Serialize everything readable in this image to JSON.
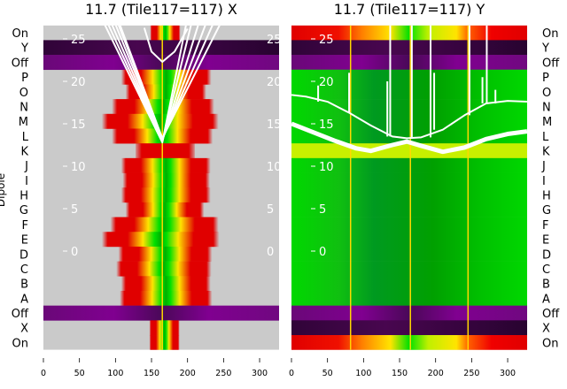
{
  "chart_data": {
    "type": "heatmap",
    "ylabel": "Dipole",
    "row_labels": [
      "On",
      "Y",
      "Off",
      "P",
      "O",
      "N",
      "M",
      "L",
      "K",
      "J",
      "I",
      "H",
      "G",
      "F",
      "E",
      "D",
      "C",
      "B",
      "A",
      "Off",
      "X",
      "On"
    ],
    "inner_yticks": [
      "0",
      "5",
      "10",
      "15",
      "20",
      "25"
    ],
    "inner_ytick_values": [
      0,
      5,
      10,
      15,
      20,
      25
    ],
    "xticks": [
      "0",
      "50",
      "100",
      "150",
      "200",
      "250",
      "300"
    ],
    "xtick_values": [
      0,
      50,
      100,
      150,
      200,
      250,
      300
    ],
    "xlim": [
      0,
      327
    ],
    "ylim_inner": [
      -11.5,
      26.7
    ],
    "colors": {
      "gray": "#cacaca",
      "purple": "#7e0a8a",
      "dark": "#2a0433",
      "green": "#00b800",
      "lime": "#c8f000",
      "red": "#e00000",
      "yellow": "#ffe400",
      "green_bright": "#00e000",
      "line": "#ffffff",
      "marker": "#ffd800"
    },
    "panels": [
      {
        "title": "11.7 (Tile117=117) X",
        "rows": [
          {
            "kind": "band",
            "range": [
              148,
              190
            ]
          },
          {
            "kind": "dark"
          },
          {
            "kind": "purple"
          },
          {
            "kind": "band",
            "range": [
              108,
              233
            ]
          },
          {
            "kind": "band",
            "range": [
              114,
              226
            ]
          },
          {
            "kind": "band",
            "range": [
              95,
              237
            ]
          },
          {
            "kind": "band",
            "range": [
              81,
              243
            ]
          },
          {
            "kind": "band",
            "range": [
              95,
              235
            ]
          },
          {
            "kind": "redband",
            "range": [
              128,
              210
            ]
          },
          {
            "kind": "band",
            "range": [
              108,
              232
            ]
          },
          {
            "kind": "band",
            "range": [
              110,
              231
            ]
          },
          {
            "kind": "band",
            "range": [
              108,
              232
            ]
          },
          {
            "kind": "band",
            "range": [
              114,
              223
            ]
          },
          {
            "kind": "band",
            "range": [
              93,
              243
            ]
          },
          {
            "kind": "band",
            "range": [
              81,
              244
            ]
          },
          {
            "kind": "band",
            "range": [
              104,
              234
            ]
          },
          {
            "kind": "band",
            "range": [
              101,
              233
            ]
          },
          {
            "kind": "band",
            "range": [
              108,
              232
            ]
          },
          {
            "kind": "band",
            "range": [
              106,
              234
            ]
          },
          {
            "kind": "purple"
          },
          {
            "kind": "band",
            "range": [
              147,
              189
            ]
          },
          {
            "kind": "band",
            "range": [
              147,
              189
            ]
          }
        ],
        "center": 165,
        "lines": [
          [
            [
              85,
              26.7
            ],
            [
              165,
              12.8
            ],
            [
              198,
              26.7
            ]
          ],
          [
            [
              90,
              26.7
            ],
            [
              165,
              12.9
            ],
            [
              205,
              26.7
            ]
          ],
          [
            [
              95,
              26.7
            ],
            [
              165,
              13.0
            ],
            [
              215,
              26.7
            ]
          ],
          [
            [
              100,
              26.7
            ],
            [
              165,
              13.1
            ],
            [
              225,
              26.7
            ]
          ],
          [
            [
              104,
              26.7
            ],
            [
              165,
              13.2
            ],
            [
              235,
              26.7
            ]
          ],
          [
            [
              106,
              26.7
            ],
            [
              165,
              13.3
            ],
            [
              245,
              26.7
            ]
          ],
          [
            [
              140,
              26.3
            ],
            [
              150,
              23.5
            ],
            [
              165,
              22.3
            ],
            [
              182,
              23.5
            ],
            [
              200,
              26.2
            ]
          ]
        ]
      },
      {
        "title": "11.7 (Tile117=117) Y",
        "rows": [
          {
            "kind": "spectrum"
          },
          {
            "kind": "dark"
          },
          {
            "kind": "purple"
          },
          {
            "kind": "green"
          },
          {
            "kind": "green"
          },
          {
            "kind": "green"
          },
          {
            "kind": "green"
          },
          {
            "kind": "green"
          },
          {
            "kind": "lime"
          },
          {
            "kind": "green"
          },
          {
            "kind": "green"
          },
          {
            "kind": "green"
          },
          {
            "kind": "green"
          },
          {
            "kind": "green"
          },
          {
            "kind": "green"
          },
          {
            "kind": "green"
          },
          {
            "kind": "green"
          },
          {
            "kind": "green"
          },
          {
            "kind": "green"
          },
          {
            "kind": "purple"
          },
          {
            "kind": "dark"
          },
          {
            "kind": "spectrum"
          }
        ],
        "markers": [
          82,
          165,
          245
        ],
        "lines": [
          [
            [
              0,
              18.4
            ],
            [
              20,
              18.2
            ],
            [
              50,
              17.6
            ],
            [
              80,
              16.3
            ],
            [
              110,
              14.8
            ],
            [
              140,
              13.5
            ],
            [
              160,
              13.3
            ],
            [
              180,
              13.4
            ],
            [
              210,
              14.3
            ],
            [
              240,
              16
            ],
            [
              270,
              17.4
            ],
            [
              300,
              17.7
            ],
            [
              327,
              17.6
            ]
          ],
          [
            [
              0,
              15
            ],
            [
              30,
              14
            ],
            [
              60,
              13
            ],
            [
              90,
              12.1
            ],
            [
              110,
              11.8
            ],
            [
              140,
              12.5
            ],
            [
              160,
              12.9
            ],
            [
              180,
              12.4
            ],
            [
              210,
              11.7
            ],
            [
              240,
              12.2
            ],
            [
              270,
              13.2
            ],
            [
              300,
              13.8
            ],
            [
              327,
              14.1
            ]
          ]
        ],
        "spikes": [
          [
            37,
            19.5
          ],
          [
            80,
            21
          ],
          [
            133,
            20
          ],
          [
            137,
            26.7
          ],
          [
            167,
            26.7
          ],
          [
            193,
            26.7
          ],
          [
            198,
            21
          ],
          [
            247,
            26.7
          ],
          [
            265,
            20.5
          ],
          [
            271,
            26.7
          ],
          [
            283,
            19
          ]
        ]
      }
    ]
  }
}
